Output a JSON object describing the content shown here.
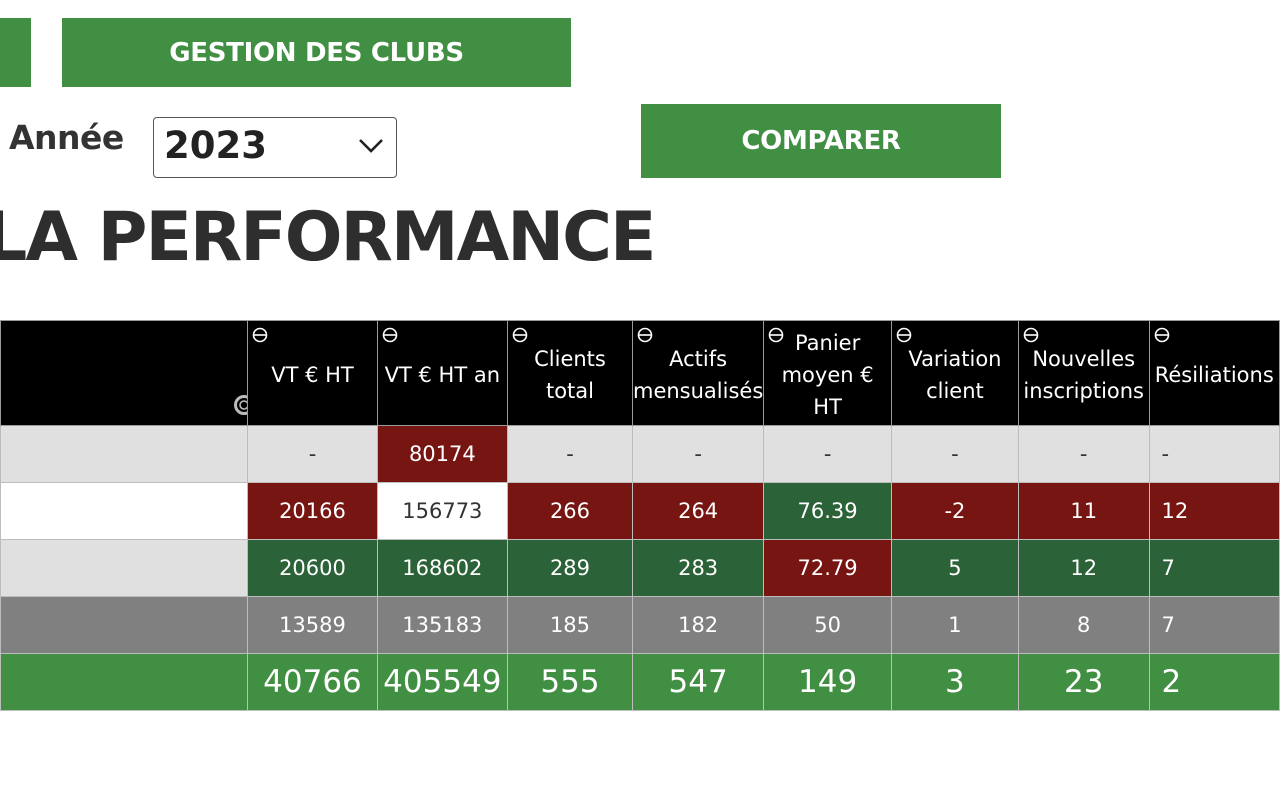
{
  "nav": {
    "left_button_label": "",
    "gestion_label": "GESTION DES CLUBS"
  },
  "filters": {
    "year_label": "Année",
    "year_value": "2023",
    "compare_label": "COMPARER"
  },
  "page_title": "LA PERFORMANCE",
  "table": {
    "headers": [
      {
        "label": "VT € HT"
      },
      {
        "label": "VT € HT an"
      },
      {
        "label": "Clients\ntotal"
      },
      {
        "label": "Actifs\nmensualisés"
      },
      {
        "label": "Panier\nmoyen €\nHT"
      },
      {
        "label": "Variation\nclient"
      },
      {
        "label": "Nouvelles\ninscriptions"
      },
      {
        "label": "Résiliations"
      }
    ],
    "rows": [
      {
        "cells": [
          "-",
          "80174",
          "-",
          "-",
          "-",
          "-",
          "-",
          "-"
        ]
      },
      {
        "cells": [
          "20166",
          "156773",
          "266",
          "264",
          "76.39",
          "-2",
          "11",
          "12"
        ]
      },
      {
        "cells": [
          "20600",
          "168602",
          "289",
          "283",
          "72.79",
          "5",
          "12",
          "7"
        ]
      },
      {
        "cells": [
          "13589",
          "135183",
          "185",
          "182",
          "50",
          "1",
          "8",
          "7"
        ]
      },
      {
        "cells": [
          "40766",
          "405549",
          "555",
          "547",
          "149",
          "3",
          "23",
          "2"
        ]
      }
    ]
  },
  "colors": {
    "green": "#418f42",
    "dark_green": "#2b6238",
    "red": "#761512",
    "grey": "#808080",
    "light": "#e0e0e0"
  }
}
